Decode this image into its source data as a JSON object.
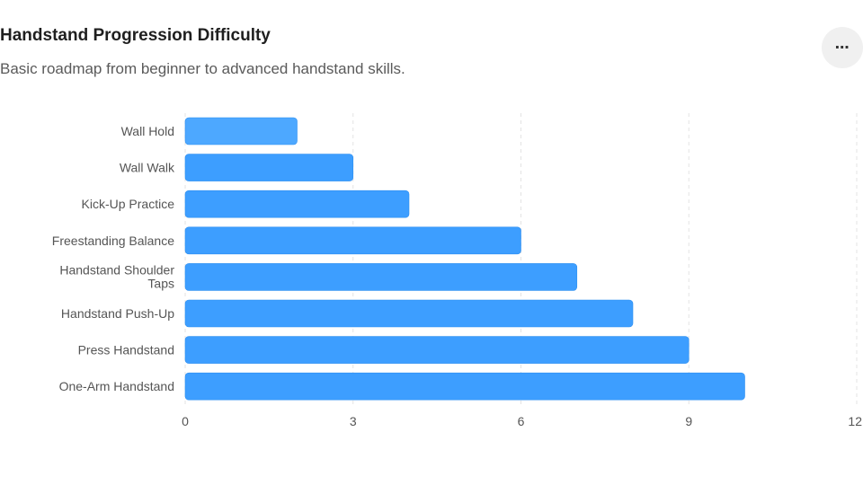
{
  "header": {
    "title": "Handstand Progression Difficulty",
    "subtitle": "Basic roadmap from beginner to advanced handstand skills.",
    "more_icon": "more-horizontal-icon",
    "more_glyph": "⋯"
  },
  "chart_data": {
    "type": "bar",
    "orientation": "horizontal",
    "categories": [
      "Wall Hold",
      "Wall Walk",
      "Kick-Up Practice",
      "Freestanding Balance",
      "Handstand Shoulder Taps",
      "Handstand Push-Up",
      "Press Handstand",
      "One-Arm Handstand"
    ],
    "values": [
      2,
      3,
      4,
      6,
      7,
      8,
      9,
      10
    ],
    "xlim": [
      0,
      12
    ],
    "xticks": [
      0,
      3,
      6,
      9,
      12
    ],
    "grid": "vertical dashed",
    "colors": {
      "first_bar": "#4da8ff",
      "bar": "#3d9eff",
      "bar_stroke": "#2f8ff0",
      "grid": "#e3e3e3"
    }
  }
}
